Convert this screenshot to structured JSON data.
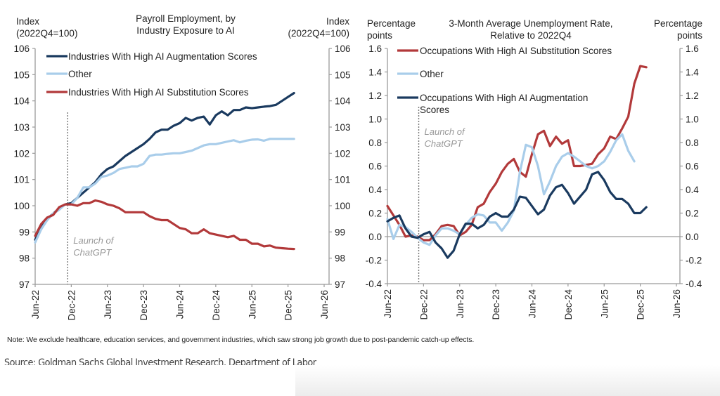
{
  "charts_meta": {
    "note": "Note: We exclude healthcare, education services, and government industries, which saw strong job growth due to post-pandemic catch-up effects.",
    "source": "Source: Goldman Sachs Global Investment Research, Department of Labor"
  },
  "colors": {
    "dark_blue": "#1a3a5f",
    "light_blue": "#a9cdea",
    "red": "#b2393a",
    "axis": "#9a9a9a",
    "annotation": "#999999"
  },
  "chart_data": [
    {
      "type": "line",
      "title": "Payroll Employment, by Industry Exposure to AI",
      "title_lines": [
        "Payroll Employment, by",
        "Industry Exposure to AI"
      ],
      "ylabel_left_lines": [
        "Index",
        "(2022Q4=100)"
      ],
      "ylabel_right_lines": [
        "Index",
        "(2022Q4=100)"
      ],
      "xlabel": "",
      "ylim": [
        97,
        106
      ],
      "yticks": [
        "97",
        "98",
        "99",
        "100",
        "101",
        "102",
        "103",
        "104",
        "105",
        "106"
      ],
      "ytick_values": [
        97,
        98,
        99,
        100,
        101,
        102,
        103,
        104,
        105,
        106
      ],
      "x_start": "Jun-22",
      "x_unit": "month",
      "xlim_months": [
        0,
        48
      ],
      "xticks": [
        "Jun-22",
        "Dec-22",
        "Jun-23",
        "Dec-23",
        "Jun-24",
        "Dec-24",
        "Jun-25",
        "Dec-25",
        "Jun-26"
      ],
      "xtick_months": [
        0,
        6,
        12,
        18,
        24,
        30,
        36,
        42,
        48
      ],
      "grid": false,
      "legend_position": "top-left",
      "annotation": {
        "lines": [
          "Launch of",
          "ChatGPT"
        ],
        "x_month": 5.4
      },
      "series": [
        {
          "name": "Industries With High AI Augmentation Scores",
          "color": "#1a3a5f",
          "values": [
            98.7,
            99.2,
            99.5,
            99.7,
            99.9,
            100.05,
            100.1,
            100.3,
            100.5,
            100.7,
            100.9,
            101.2,
            101.4,
            101.5,
            101.7,
            101.9,
            102.05,
            102.2,
            102.35,
            102.55,
            102.8,
            102.9,
            102.9,
            103.05,
            103.15,
            103.35,
            103.25,
            103.35,
            103.4,
            103.1,
            103.45,
            103.6,
            103.45,
            103.65,
            103.65,
            103.75,
            103.72,
            103.75,
            103.78,
            103.8,
            103.85,
            104.0,
            104.15,
            104.3
          ]
        },
        {
          "name": "Other",
          "color": "#a9cdea",
          "values": [
            98.6,
            99.1,
            99.45,
            99.7,
            99.85,
            100.05,
            100.05,
            100.3,
            100.7,
            100.7,
            100.85,
            101.1,
            101.15,
            101.25,
            101.4,
            101.45,
            101.5,
            101.5,
            101.6,
            101.9,
            101.95,
            101.95,
            101.98,
            102.0,
            102.0,
            102.05,
            102.1,
            102.2,
            102.3,
            102.35,
            102.35,
            102.4,
            102.45,
            102.5,
            102.42,
            102.48,
            102.52,
            102.53,
            102.48,
            102.55,
            102.55,
            102.55,
            102.55,
            102.55
          ]
        },
        {
          "name": "Industries With High AI Substitution Scores",
          "color": "#b2393a",
          "values": [
            98.85,
            99.3,
            99.55,
            99.65,
            99.95,
            100.05,
            100.05,
            100.0,
            100.1,
            100.1,
            100.2,
            100.15,
            100.05,
            100.0,
            99.9,
            99.75,
            99.75,
            99.75,
            99.75,
            99.6,
            99.5,
            99.45,
            99.45,
            99.3,
            99.15,
            99.1,
            98.95,
            98.95,
            99.1,
            98.95,
            98.9,
            98.85,
            98.8,
            98.85,
            98.7,
            98.7,
            98.55,
            98.55,
            98.45,
            98.48,
            98.4,
            98.38,
            98.36,
            98.35
          ]
        }
      ]
    },
    {
      "type": "line",
      "title": "3-Month Average Unemployment Rate, Relative to 2022Q4",
      "title_lines": [
        "3-Month Average Unemployment Rate,",
        "Relative to 2022Q4"
      ],
      "ylabel_left_lines": [
        "Percentage",
        "points"
      ],
      "ylabel_right_lines": [
        "Percentage",
        "points"
      ],
      "xlabel": "",
      "ylim": [
        -0.4,
        1.6
      ],
      "yticks": [
        "-0.4",
        "-0.2",
        "0.0",
        "0.2",
        "0.4",
        "0.6",
        "0.8",
        "1.0",
        "1.2",
        "1.4",
        "1.6"
      ],
      "ytick_values": [
        -0.4,
        -0.2,
        0.0,
        0.2,
        0.4,
        0.6,
        0.8,
        1.0,
        1.2,
        1.4,
        1.6
      ],
      "x_start": "Jun-22",
      "x_unit": "month",
      "xlim_months": [
        0,
        48
      ],
      "xticks": [
        "Jun-22",
        "Dec-22",
        "Jun-23",
        "Dec-23",
        "Jun-24",
        "Dec-24",
        "Jun-25",
        "Dec-25",
        "Jun-26"
      ],
      "xtick_months": [
        0,
        6,
        12,
        18,
        24,
        30,
        36,
        42,
        48
      ],
      "grid": false,
      "zero_line": true,
      "legend_position": "top-left",
      "annotation": {
        "lines": [
          "Launch of",
          "ChatGPT"
        ],
        "x_month": 5.2
      },
      "series": [
        {
          "name": "Occupations With High AI Substitution Scores",
          "color": "#b2393a",
          "values": [
            0.26,
            0.18,
            0.1,
            0.0,
            0.01,
            0.0,
            -0.03,
            -0.03,
            0.02,
            0.09,
            0.1,
            0.09,
            0.01,
            0.04,
            0.1,
            0.25,
            0.28,
            0.38,
            0.45,
            0.55,
            0.62,
            0.66,
            0.55,
            0.51,
            0.7,
            0.87,
            0.9,
            0.77,
            0.85,
            0.79,
            0.82,
            0.6,
            0.6,
            0.61,
            0.62,
            0.7,
            0.75,
            0.85,
            0.83,
            0.92,
            1.02,
            1.3,
            1.45,
            1.44
          ]
        },
        {
          "name": "Other",
          "color": "#a9cdea",
          "values": [
            0.15,
            -0.02,
            0.1,
            0.08,
            0.04,
            -0.01,
            -0.05,
            -0.07,
            0.01,
            0.07,
            0.07,
            0.05,
            0.02,
            0.1,
            0.16,
            0.19,
            0.18,
            0.12,
            0.12,
            0.05,
            0.12,
            0.22,
            0.55,
            0.78,
            0.76,
            0.6,
            0.36,
            0.47,
            0.6,
            0.68,
            0.71,
            0.68,
            0.64,
            0.6,
            0.58,
            0.6,
            0.64,
            0.72,
            0.82,
            0.87,
            0.73,
            0.64
          ]
        },
        {
          "name": "Occupations With High AI Augmentation Scores",
          "color": "#1a3a5f",
          "values": [
            0.13,
            0.16,
            0.18,
            0.07,
            0.0,
            -0.01,
            0.02,
            0.04,
            -0.05,
            -0.1,
            -0.18,
            -0.12,
            0.02,
            0.11,
            0.11,
            0.07,
            0.1,
            0.17,
            0.2,
            0.17,
            0.17,
            0.23,
            0.34,
            0.33,
            0.26,
            0.19,
            0.23,
            0.35,
            0.42,
            0.44,
            0.37,
            0.28,
            0.34,
            0.4,
            0.53,
            0.55,
            0.48,
            0.38,
            0.32,
            0.32,
            0.28,
            0.2,
            0.2,
            0.25
          ]
        }
      ]
    }
  ]
}
